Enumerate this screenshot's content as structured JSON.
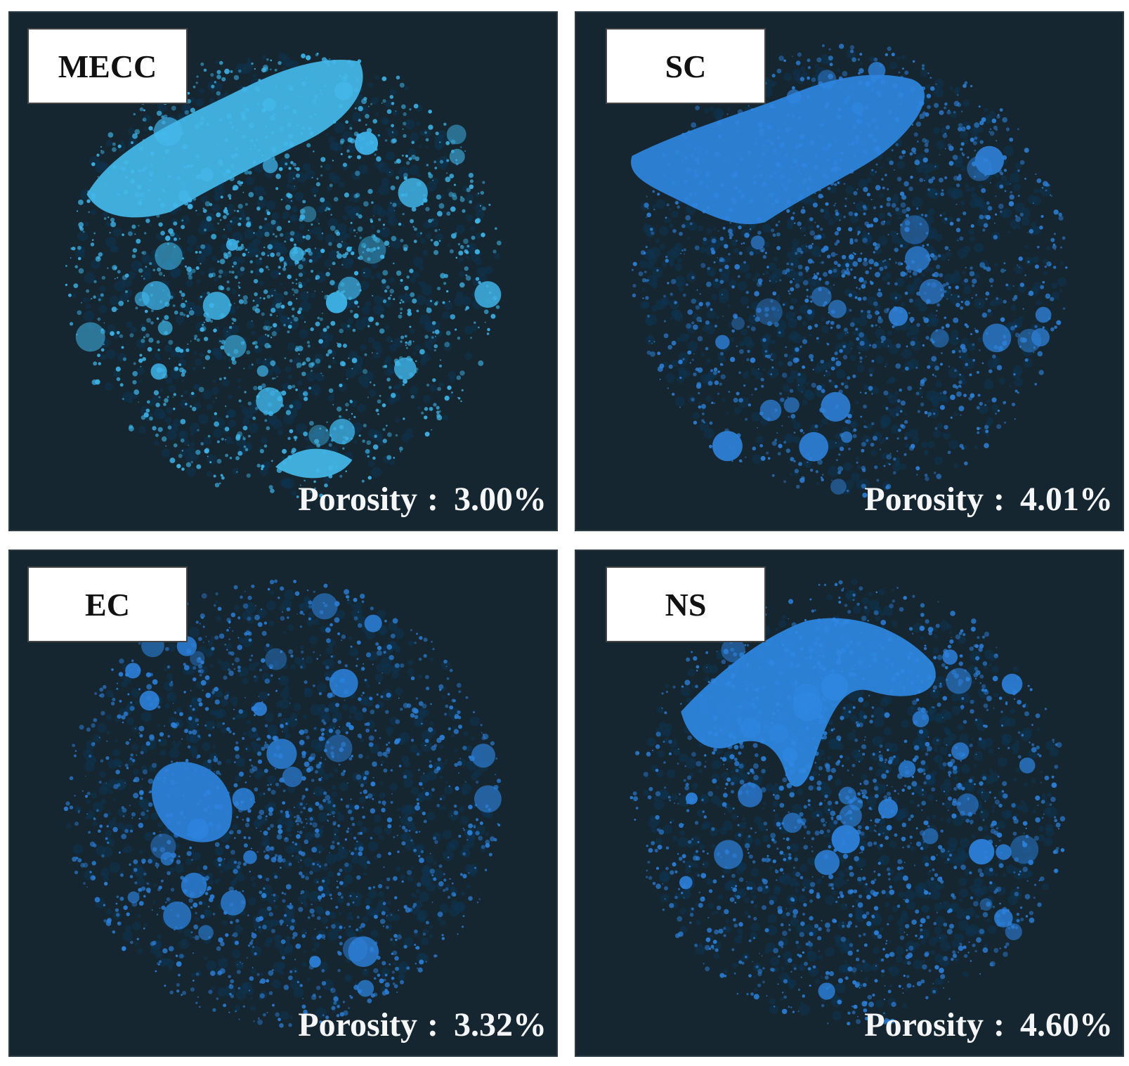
{
  "panels": [
    {
      "id": "mecc",
      "label": "MECC",
      "porosity_label": "Porosity",
      "separator": ":",
      "porosity_value": "3.00%",
      "particle_color": "#3fb4e8",
      "bulk_color": "#44b8ea"
    },
    {
      "id": "sc",
      "label": "SC",
      "porosity_label": "Porosity",
      "separator": ":",
      "porosity_value": "4.01%",
      "particle_color": "#2e7fd6",
      "bulk_color": "#2f86e0"
    },
    {
      "id": "ec",
      "label": "EC",
      "porosity_label": "Porosity",
      "separator": ":",
      "porosity_value": "3.32%",
      "particle_color": "#2c7fd8",
      "bulk_color": "#2c82dc"
    },
    {
      "id": "ns",
      "label": "NS",
      "porosity_label": "Porosity",
      "separator": ":",
      "porosity_value": "4.60%",
      "particle_color": "#2c80da",
      "bulk_color": "#2f88e2"
    }
  ],
  "colors": {
    "panel_background": "#162630",
    "label_background": "#ffffff",
    "porosity_text": "#f4f6f8"
  }
}
